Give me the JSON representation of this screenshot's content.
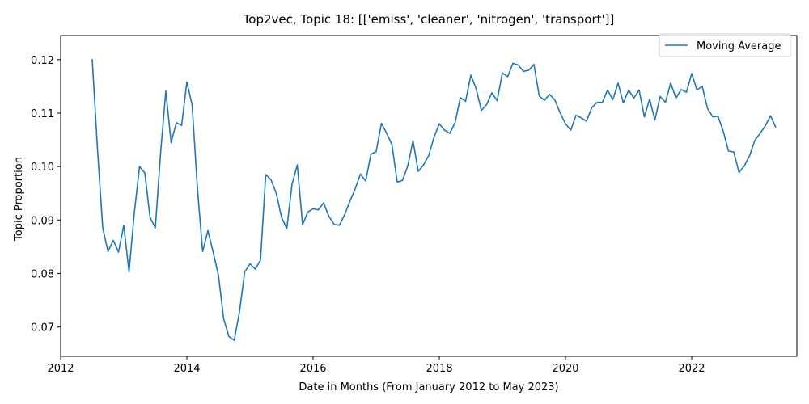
{
  "chart_data": {
    "type": "line",
    "title": "Top2vec, Topic 18: [['emiss', 'cleaner', 'nitrogen', 'transport']]",
    "xlabel": "Date in Months (From January 2012 to May 2023)",
    "ylabel": "Topic Proportion",
    "xlim": [
      "2012-01",
      "2023-09"
    ],
    "ylim": [
      0.0645,
      0.1245
    ],
    "x_ticks": [
      "2012",
      "2014",
      "2016",
      "2018",
      "2020",
      "2022"
    ],
    "y_ticks": [
      "0.07",
      "0.08",
      "0.09",
      "0.10",
      "0.11",
      "0.12"
    ],
    "legend": {
      "position": "top-right"
    },
    "series": [
      {
        "name": "Moving Average",
        "color": "#1f77b4",
        "x": [
          "2012-07",
          "2012-08",
          "2012-09",
          "2012-10",
          "2012-11",
          "2012-12",
          "2013-01",
          "2013-02",
          "2013-03",
          "2013-04",
          "2013-05",
          "2013-06",
          "2013-07",
          "2013-08",
          "2013-09",
          "2013-10",
          "2013-11",
          "2013-12",
          "2014-01",
          "2014-02",
          "2014-03",
          "2014-04",
          "2014-05",
          "2014-06",
          "2014-07",
          "2014-08",
          "2014-09",
          "2014-10",
          "2014-11",
          "2014-12",
          "2015-01",
          "2015-02",
          "2015-03",
          "2015-04",
          "2015-05",
          "2015-06",
          "2015-07",
          "2015-08",
          "2015-09",
          "2015-10",
          "2015-11",
          "2015-12",
          "2016-01",
          "2016-02",
          "2016-03",
          "2016-04",
          "2016-05",
          "2016-06",
          "2016-07",
          "2016-08",
          "2016-09",
          "2016-10",
          "2016-11",
          "2016-12",
          "2017-01",
          "2017-02",
          "2017-03",
          "2017-04",
          "2017-05",
          "2017-06",
          "2017-07",
          "2017-08",
          "2017-09",
          "2017-10",
          "2017-11",
          "2017-12",
          "2018-01",
          "2018-02",
          "2018-03",
          "2018-04",
          "2018-05",
          "2018-06",
          "2018-07",
          "2018-08",
          "2018-09",
          "2018-10",
          "2018-11",
          "2018-12",
          "2019-01",
          "2019-02",
          "2019-03",
          "2019-04",
          "2019-05",
          "2019-06",
          "2019-07",
          "2019-08",
          "2019-09",
          "2019-10",
          "2019-11",
          "2019-12",
          "2020-01",
          "2020-02",
          "2020-03",
          "2020-04",
          "2020-05",
          "2020-06",
          "2020-07",
          "2020-08",
          "2020-09",
          "2020-10",
          "2020-11",
          "2020-12",
          "2021-01",
          "2021-02",
          "2021-03",
          "2021-04",
          "2021-05",
          "2021-06",
          "2021-07",
          "2021-08",
          "2021-09",
          "2021-10",
          "2021-11",
          "2021-12",
          "2022-01",
          "2022-02",
          "2022-03",
          "2022-04",
          "2022-05",
          "2022-06",
          "2022-07",
          "2022-08",
          "2022-09",
          "2022-10",
          "2022-11",
          "2022-12",
          "2023-01",
          "2023-02",
          "2023-03",
          "2023-04",
          "2023-05"
        ],
        "y": [
          0.1201,
          0.1033,
          0.0885,
          0.0841,
          0.0862,
          0.084,
          0.089,
          0.0803,
          0.0913,
          0.1,
          0.0988,
          0.0905,
          0.0885,
          0.1025,
          0.1141,
          0.1045,
          0.1082,
          0.1077,
          0.1158,
          0.1115,
          0.096,
          0.0841,
          0.088,
          0.084,
          0.0797,
          0.0715,
          0.0682,
          0.0675,
          0.0728,
          0.0803,
          0.0818,
          0.0808,
          0.0825,
          0.0985,
          0.0975,
          0.095,
          0.0905,
          0.0884,
          0.0967,
          0.1003,
          0.0891,
          0.0915,
          0.0921,
          0.0919,
          0.0932,
          0.0907,
          0.0892,
          0.089,
          0.091,
          0.0935,
          0.0958,
          0.0986,
          0.0973,
          0.1023,
          0.1028,
          0.1081,
          0.1062,
          0.1041,
          0.0971,
          0.0974,
          0.1001,
          0.1048,
          0.0991,
          0.1003,
          0.1021,
          0.1055,
          0.108,
          0.1068,
          0.1062,
          0.1082,
          0.1129,
          0.1122,
          0.1171,
          0.1146,
          0.1105,
          0.1116,
          0.1138,
          0.1123,
          0.1175,
          0.1168,
          0.1193,
          0.119,
          0.1178,
          0.118,
          0.1191,
          0.1132,
          0.1124,
          0.1135,
          0.1124,
          0.11,
          0.108,
          0.1068,
          0.1096,
          0.1091,
          0.1085,
          0.111,
          0.112,
          0.112,
          0.1143,
          0.1125,
          0.1156,
          0.1119,
          0.1143,
          0.1128,
          0.1143,
          0.1093,
          0.1126,
          0.1087,
          0.1131,
          0.112,
          0.1156,
          0.1128,
          0.1144,
          0.1139,
          0.1174,
          0.1143,
          0.115,
          0.1109,
          0.1093,
          0.1094,
          0.1066,
          0.1029,
          0.1027,
          0.0989,
          0.1001,
          0.102,
          0.1049,
          0.1062,
          0.1076,
          0.1095,
          0.1073
        ]
      }
    ]
  }
}
